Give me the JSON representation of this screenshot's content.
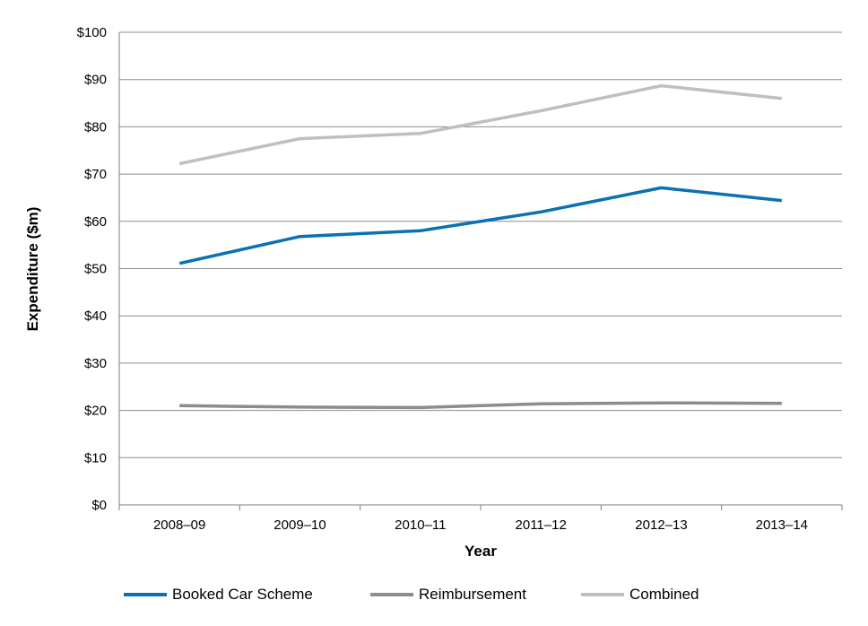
{
  "chart_data": {
    "type": "line",
    "xlabel": "Year",
    "ylabel": "Expenditure ($m)",
    "categories": [
      "2008–09",
      "2009–10",
      "2010–11",
      "2011–12",
      "2012–13",
      "2013–14"
    ],
    "y_ticks": [
      "$0",
      "$10",
      "$20",
      "$30",
      "$40",
      "$50",
      "$60",
      "$70",
      "$80",
      "$90",
      "$100"
    ],
    "ylim": [
      0,
      100
    ],
    "grid": true,
    "legend_position": "bottom",
    "series": [
      {
        "name": "Booked Car Scheme",
        "color": "#0a71b3",
        "values": [
          51.1,
          56.8,
          58.0,
          62.0,
          67.1,
          64.4
        ]
      },
      {
        "name": "Reimbursement",
        "color": "#8c8c8c",
        "values": [
          21.0,
          20.7,
          20.6,
          21.4,
          21.6,
          21.5
        ]
      },
      {
        "name": "Combined",
        "color": "#bfbfbf",
        "values": [
          72.2,
          77.5,
          78.6,
          83.4,
          88.7,
          86.0
        ]
      }
    ]
  }
}
